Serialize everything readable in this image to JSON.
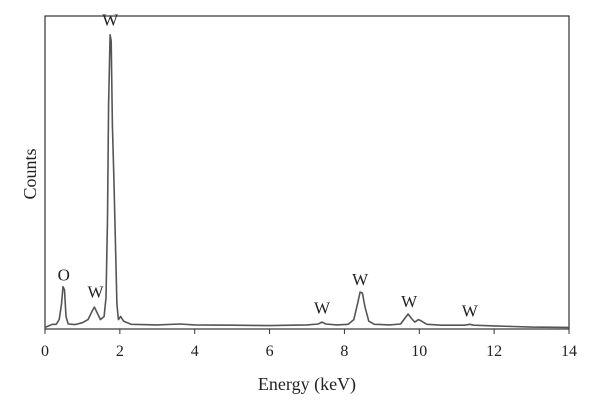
{
  "chart_data": {
    "type": "line",
    "title": "",
    "xlabel": "Energy (keV)",
    "ylabel": "Counts",
    "xlim": [
      0,
      14
    ],
    "ylim": [
      0,
      100
    ],
    "x_ticks": [
      0,
      2,
      4,
      6,
      8,
      10,
      12,
      14
    ],
    "y_ticks_shown": false,
    "grid": false,
    "legend": "none",
    "line_color": "#555555",
    "series": [
      {
        "values": [
          [
            0.0,
            0.5
          ],
          [
            0.1,
            1.0
          ],
          [
            0.2,
            1.5
          ],
          [
            0.3,
            1.5
          ],
          [
            0.38,
            3.0
          ],
          [
            0.44,
            8.0
          ],
          [
            0.48,
            13.5
          ],
          [
            0.52,
            12.5
          ],
          [
            0.56,
            4.0
          ],
          [
            0.62,
            1.6
          ],
          [
            0.8,
            1.4
          ],
          [
            1.0,
            2.0
          ],
          [
            1.15,
            3.0
          ],
          [
            1.25,
            5.5
          ],
          [
            1.32,
            7.0
          ],
          [
            1.38,
            5.5
          ],
          [
            1.48,
            3.0
          ],
          [
            1.58,
            4.0
          ],
          [
            1.63,
            10.0
          ],
          [
            1.67,
            35.0
          ],
          [
            1.7,
            72.0
          ],
          [
            1.74,
            94.0
          ],
          [
            1.77,
            92.0
          ],
          [
            1.8,
            65.0
          ],
          [
            1.84,
            48.0
          ],
          [
            1.88,
            28.0
          ],
          [
            1.92,
            8.0
          ],
          [
            1.96,
            3.0
          ],
          [
            2.02,
            4.0
          ],
          [
            2.1,
            2.5
          ],
          [
            2.3,
            1.5
          ],
          [
            3.0,
            1.3
          ],
          [
            3.6,
            1.6
          ],
          [
            4.0,
            1.3
          ],
          [
            5.0,
            1.2
          ],
          [
            6.0,
            1.1
          ],
          [
            7.0,
            1.3
          ],
          [
            7.3,
            1.6
          ],
          [
            7.4,
            2.2
          ],
          [
            7.5,
            1.6
          ],
          [
            7.8,
            1.3
          ],
          [
            8.1,
            1.5
          ],
          [
            8.25,
            3.0
          ],
          [
            8.35,
            8.0
          ],
          [
            8.42,
            11.8
          ],
          [
            8.48,
            11.5
          ],
          [
            8.55,
            7.0
          ],
          [
            8.65,
            2.5
          ],
          [
            8.8,
            1.5
          ],
          [
            9.2,
            1.3
          ],
          [
            9.5,
            1.6
          ],
          [
            9.62,
            3.5
          ],
          [
            9.7,
            4.8
          ],
          [
            9.78,
            3.5
          ],
          [
            9.88,
            2.2
          ],
          [
            9.98,
            3.0
          ],
          [
            10.05,
            2.6
          ],
          [
            10.2,
            1.5
          ],
          [
            10.6,
            1.2
          ],
          [
            11.2,
            1.2
          ],
          [
            11.35,
            1.5
          ],
          [
            11.45,
            1.2
          ],
          [
            12.0,
            1.0
          ],
          [
            12.5,
            0.8
          ],
          [
            13.0,
            0.6
          ],
          [
            14.0,
            0.5
          ]
        ]
      }
    ],
    "annotations": [
      {
        "text": "O",
        "x": 0.5,
        "y": 15.5
      },
      {
        "text": "W",
        "x": 1.35,
        "y": 10.0
      },
      {
        "text": "W",
        "x": 1.74,
        "y": 97.0
      },
      {
        "text": "W",
        "x": 7.4,
        "y": 5.0
      },
      {
        "text": "W",
        "x": 8.42,
        "y": 14.0
      },
      {
        "text": "W",
        "x": 9.73,
        "y": 7.0
      },
      {
        "text": "W",
        "x": 11.35,
        "y": 4.0
      }
    ]
  }
}
